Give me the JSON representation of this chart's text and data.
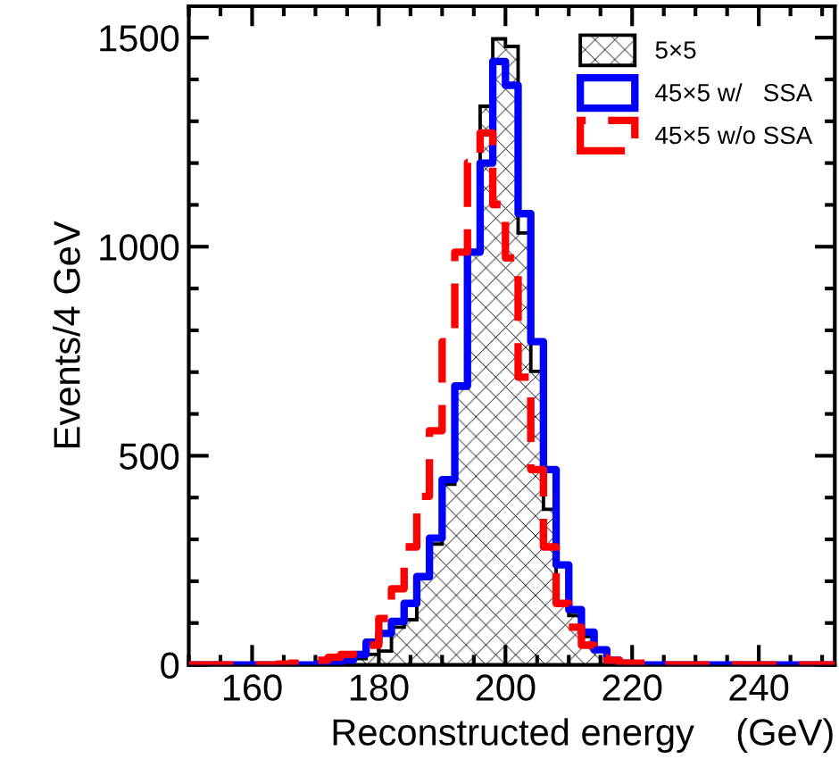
{
  "chart_data": {
    "type": "histogram",
    "xlabel": "Reconstructed energy    (GeV)",
    "ylabel": "Events/4 GeV",
    "bins": [
      150,
      152,
      154,
      156,
      158,
      160,
      162,
      164,
      166,
      168,
      170,
      172,
      174,
      176,
      178,
      180,
      182,
      184,
      186,
      188,
      190,
      192,
      194,
      196,
      198,
      200,
      202,
      204,
      206,
      208,
      210,
      212,
      214,
      216,
      218,
      220,
      222,
      224,
      226,
      228,
      230,
      232,
      234,
      236,
      238,
      240,
      242,
      244,
      246,
      248,
      250,
      252
    ],
    "series": [
      {
        "name": "5×5",
        "color": "#000000",
        "values": [
          0,
          0,
          0,
          0,
          0,
          0,
          0,
          0,
          0,
          0,
          2,
          4,
          8,
          15,
          25,
          33,
          90,
          108,
          211,
          289,
          432,
          662,
          987,
          1336,
          1497,
          1479,
          1033,
          702,
          372,
          147,
          118,
          68,
          33,
          11,
          4,
          0,
          0,
          0,
          0,
          0,
          0,
          0,
          0,
          0,
          0,
          0,
          0,
          0,
          0,
          0,
          0
        ]
      },
      {
        "name": "45×5 w/   SSA",
        "color": "#0000ff",
        "values": [
          0,
          0,
          0,
          0,
          0,
          0,
          0,
          0,
          0,
          0,
          2,
          4,
          11,
          25,
          54,
          75,
          104,
          147,
          211,
          303,
          443,
          667,
          987,
          1200,
          1443,
          1386,
          1079,
          773,
          467,
          239,
          132,
          78,
          36,
          11,
          4,
          0,
          0,
          0,
          0,
          0,
          0,
          0,
          0,
          0,
          0,
          0,
          0,
          0,
          0,
          0,
          0
        ]
      },
      {
        "name": "45×5 w/o SSA",
        "color": "#ff0000",
        "line_style": "dashed",
        "values": [
          0,
          0,
          0,
          0,
          0,
          0,
          0,
          2,
          4,
          4,
          11,
          18,
          25,
          36,
          47,
          111,
          182,
          282,
          403,
          560,
          773,
          987,
          1201,
          1272,
          1101,
          973,
          688,
          467,
          282,
          147,
          90,
          47,
          18,
          11,
          4,
          4,
          0,
          0,
          0,
          0,
          0,
          0,
          0,
          0,
          0,
          0,
          0,
          0,
          0,
          0,
          0
        ]
      }
    ],
    "xlim": [
      150,
      252
    ],
    "ylim": [
      0,
      1575
    ],
    "xticks": [
      160,
      180,
      200,
      220,
      240
    ],
    "yticks": [
      0,
      500,
      1000,
      1500
    ],
    "legend": "top right",
    "grid": false
  }
}
